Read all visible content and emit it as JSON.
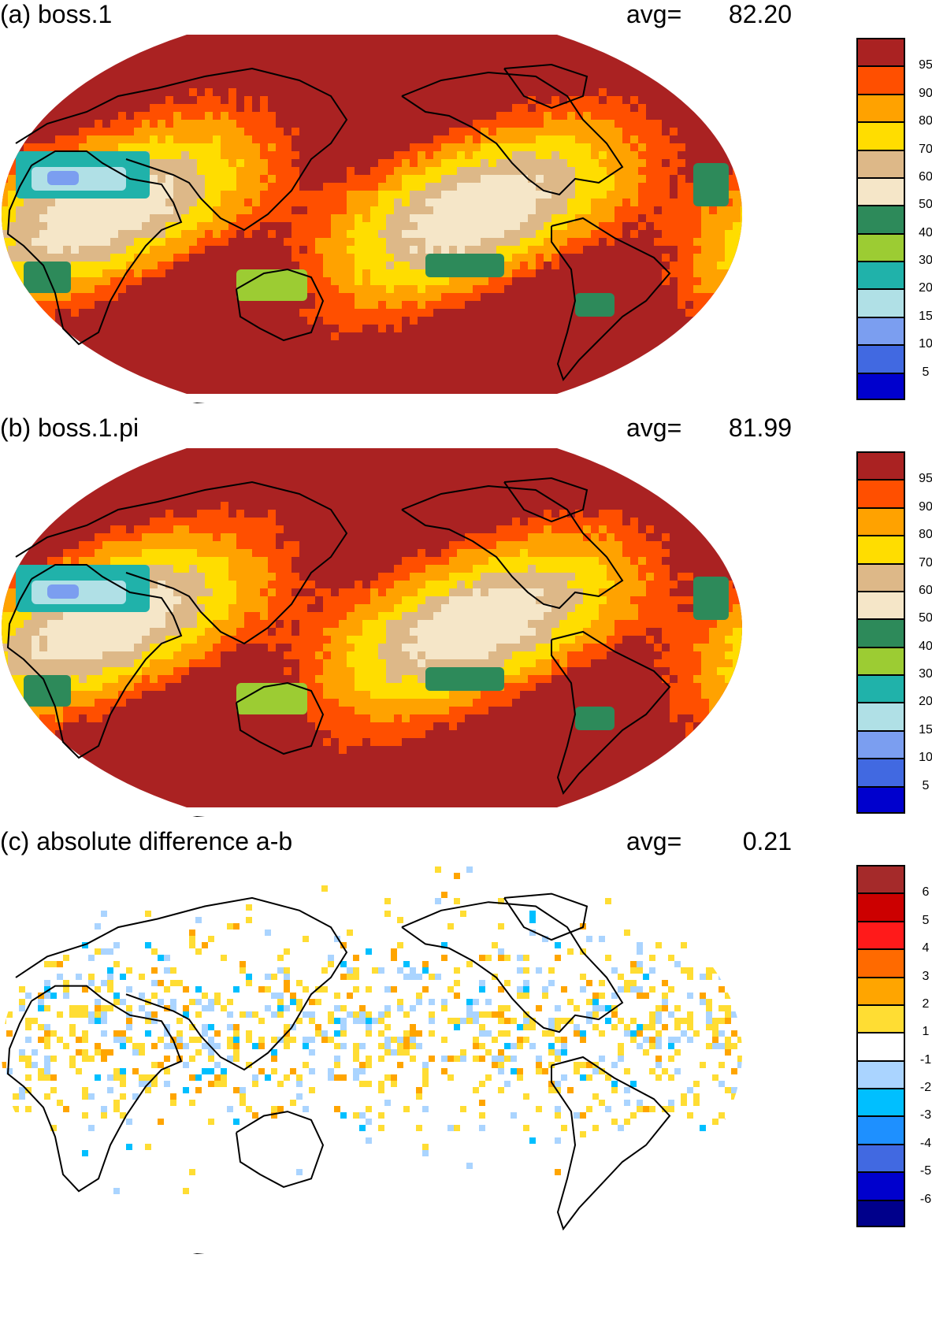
{
  "chart_data": [
    {
      "type": "heatmap",
      "panel": "a",
      "title": "(a) boss.1",
      "avg_label": "avg=",
      "avg_value": "82.20",
      "projection": "Robinson",
      "colorbar": {
        "ticks": [
          "95",
          "90",
          "80",
          "70",
          "60",
          "50",
          "40",
          "30",
          "20",
          "15",
          "10",
          "5"
        ],
        "colors": [
          "#aa2222",
          "#ff4f00",
          "#ffa200",
          "#ffdd00",
          "#ddb888",
          "#f5e6c8",
          "#2d8a5a",
          "#9ccc33",
          "#20b2aa",
          "#b0e0e6",
          "#7b9ef0",
          "#4169e1",
          "#0000cd"
        ]
      }
    },
    {
      "type": "heatmap",
      "panel": "b",
      "title": "(b) boss.1.pi",
      "avg_label": "avg=",
      "avg_value": "81.99",
      "projection": "Robinson",
      "colorbar": {
        "ticks": [
          "95",
          "90",
          "80",
          "70",
          "60",
          "50",
          "40",
          "30",
          "20",
          "15",
          "10",
          "5"
        ],
        "colors": [
          "#aa2222",
          "#ff4f00",
          "#ffa200",
          "#ffdd00",
          "#ddb888",
          "#f5e6c8",
          "#2d8a5a",
          "#9ccc33",
          "#20b2aa",
          "#b0e0e6",
          "#7b9ef0",
          "#4169e1",
          "#0000cd"
        ]
      }
    },
    {
      "type": "heatmap",
      "panel": "c",
      "title": "(c) absolute difference a-b",
      "avg_label": "avg=",
      "avg_value": "0.21",
      "projection": "Robinson",
      "colorbar": {
        "ticks": [
          "6",
          "5",
          "4",
          "3",
          "2",
          "1",
          "-1",
          "-2",
          "-3",
          "-4",
          "-5",
          "-6"
        ],
        "colors": [
          "#a52a2a",
          "#cc0000",
          "#ff1a1a",
          "#ff6a00",
          "#ffa500",
          "#ffdd33",
          "#ffffff",
          "#aad4ff",
          "#00bfff",
          "#1e90ff",
          "#4169e1",
          "#0000cd",
          "#00008b"
        ]
      }
    }
  ]
}
